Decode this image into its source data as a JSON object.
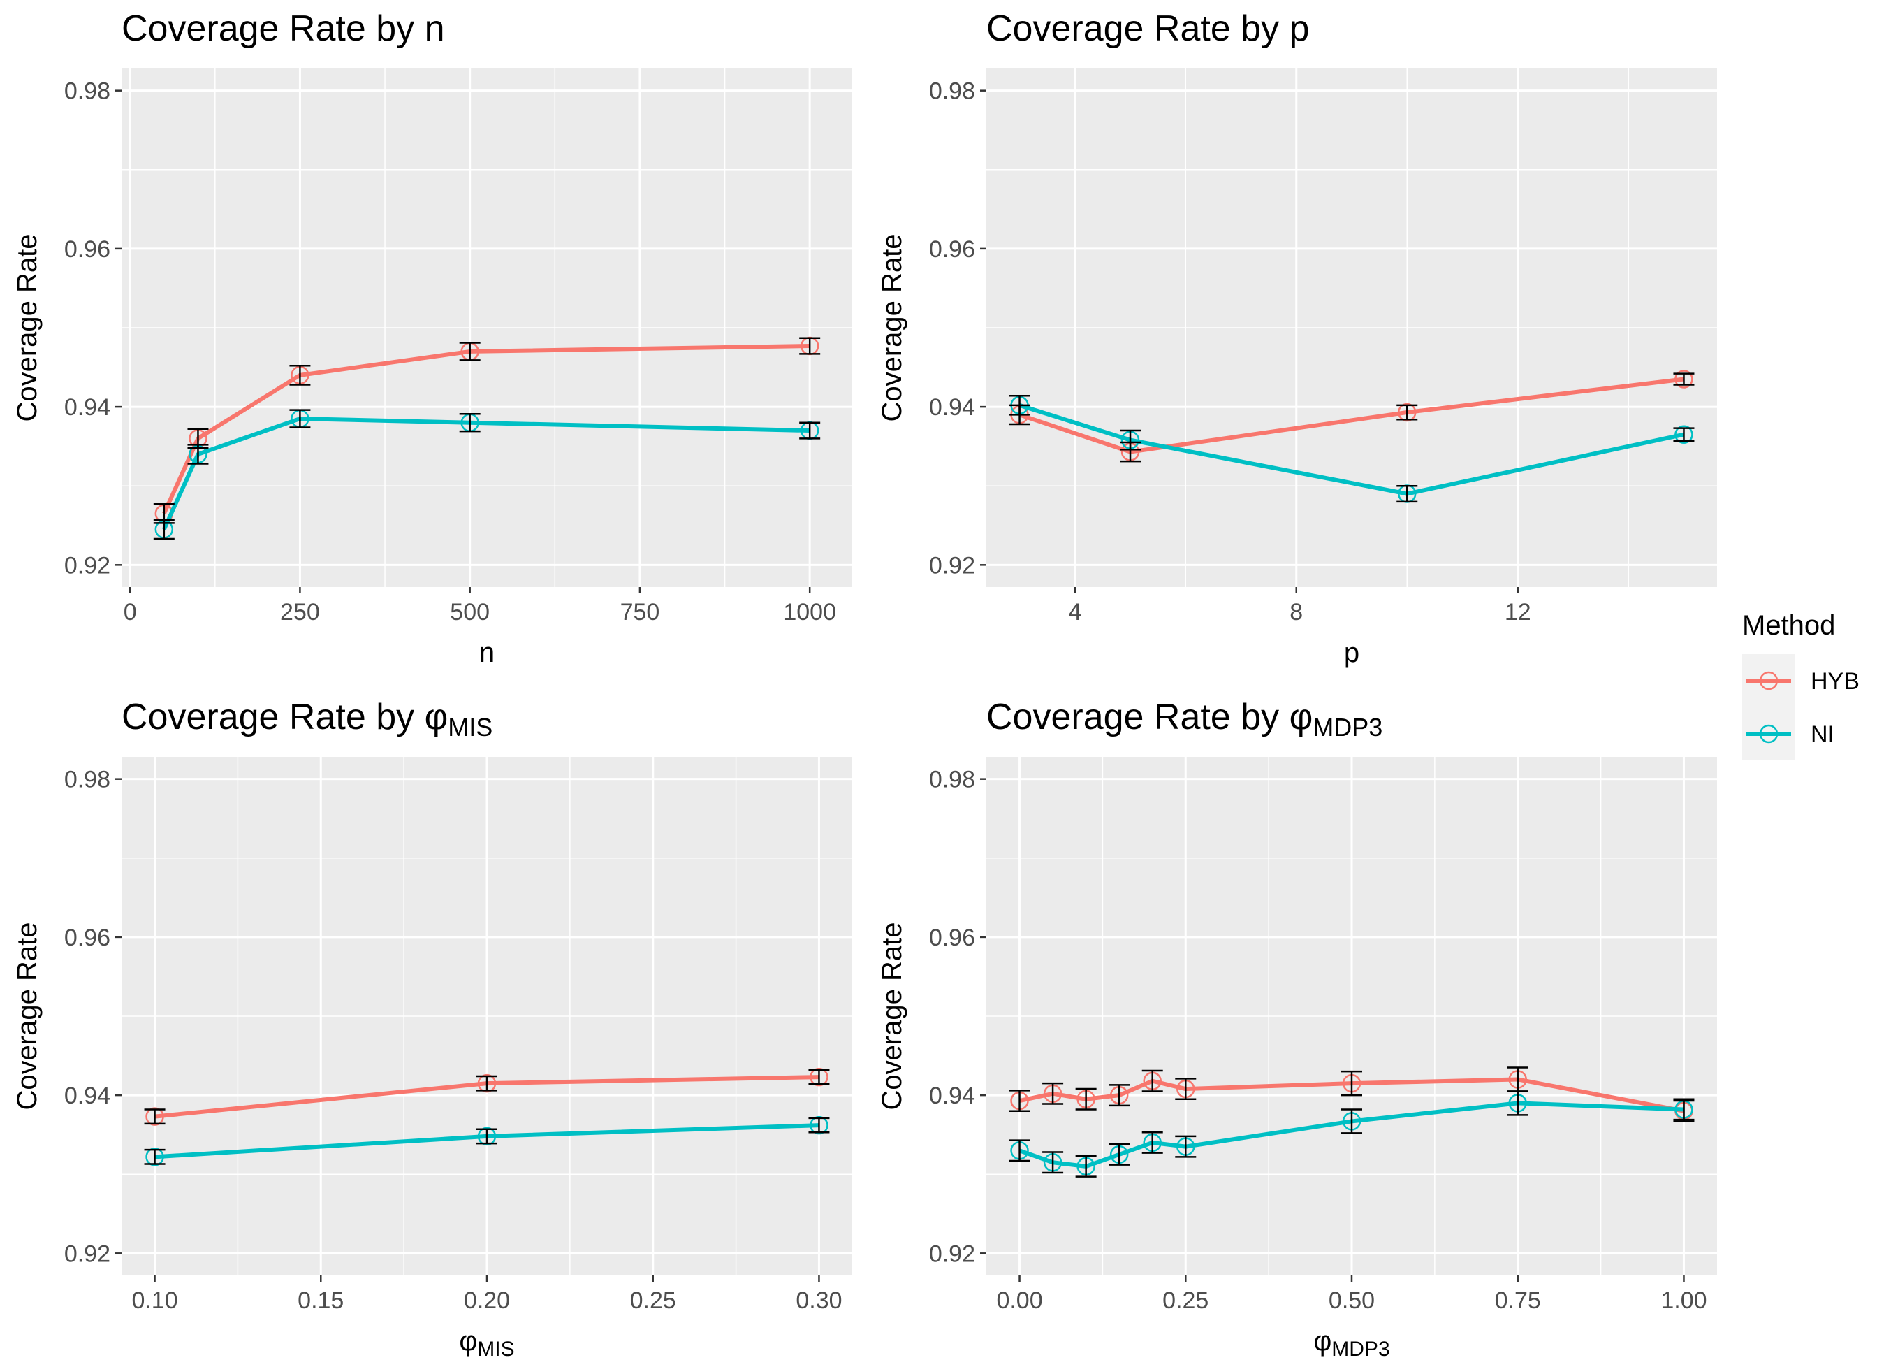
{
  "chart_data": [
    {
      "type": "line",
      "title": "Coverage Rate by n",
      "title_prefix": "Coverage Rate by ",
      "title_var": "n",
      "title_sub": "",
      "xlabel": "n",
      "xlabel_sub": "",
      "ylabel": "Coverage Rate",
      "xlim": [
        -12.5,
        1062.5
      ],
      "ylim": [
        0.9172,
        0.9828
      ],
      "xticks": [
        0,
        250,
        500,
        750,
        1000
      ],
      "xtick_labels": [
        "0",
        "250",
        "500",
        "750",
        "1000"
      ],
      "yticks": [
        0.92,
        0.94,
        0.96,
        0.98
      ],
      "ytick_labels": [
        "0.92",
        "0.94",
        "0.96",
        "0.98"
      ],
      "series": [
        {
          "name": "HYB",
          "x": [
            50,
            100,
            250,
            500,
            1000
          ],
          "y": [
            0.9265,
            0.936,
            0.944,
            0.947,
            0.9477
          ],
          "lower": [
            0.9253,
            0.9348,
            0.9428,
            0.9459,
            0.9467
          ],
          "upper": [
            0.9277,
            0.9372,
            0.9452,
            0.9481,
            0.9487
          ]
        },
        {
          "name": "NI",
          "x": [
            50,
            100,
            250,
            500,
            1000
          ],
          "y": [
            0.9245,
            0.934,
            0.9385,
            0.938,
            0.937
          ],
          "lower": [
            0.9233,
            0.9328,
            0.9374,
            0.9369,
            0.936
          ],
          "upper": [
            0.9257,
            0.9352,
            0.9396,
            0.9391,
            0.938
          ]
        }
      ]
    },
    {
      "type": "line",
      "title": "Coverage Rate by p",
      "title_prefix": "Coverage Rate by ",
      "title_var": "p",
      "title_sub": "",
      "xlabel": "p",
      "xlabel_sub": "",
      "ylabel": "Coverage Rate",
      "xlim": [
        2.4,
        15.6
      ],
      "ylim": [
        0.9172,
        0.9828
      ],
      "xticks": [
        4,
        8,
        12
      ],
      "xtick_labels": [
        "4",
        "8",
        "12"
      ],
      "yticks": [
        0.92,
        0.94,
        0.96,
        0.98
      ],
      "ytick_labels": [
        "0.92",
        "0.94",
        "0.96",
        "0.98"
      ],
      "series": [
        {
          "name": "HYB",
          "x": [
            3,
            5,
            10,
            15
          ],
          "y": [
            0.939,
            0.9343,
            0.9393,
            0.9435
          ],
          "lower": [
            0.9378,
            0.9331,
            0.9384,
            0.9428
          ],
          "upper": [
            0.9402,
            0.9355,
            0.9402,
            0.9442
          ]
        },
        {
          "name": "NI",
          "x": [
            3,
            5,
            10,
            15
          ],
          "y": [
            0.9402,
            0.9358,
            0.929,
            0.9365
          ],
          "lower": [
            0.939,
            0.9346,
            0.928,
            0.9357
          ],
          "upper": [
            0.9414,
            0.937,
            0.93,
            0.9373
          ]
        }
      ]
    },
    {
      "type": "line",
      "title": "Coverage Rate by φMIS",
      "title_prefix": "Coverage Rate by ",
      "title_var": "φ",
      "title_sub": "MIS",
      "xlabel": "φ",
      "xlabel_sub": "MIS",
      "ylabel": "Coverage Rate",
      "xlim": [
        0.09,
        0.31
      ],
      "ylim": [
        0.9172,
        0.9828
      ],
      "xticks": [
        0.1,
        0.15,
        0.2,
        0.25,
        0.3
      ],
      "xtick_labels": [
        "0.10",
        "0.15",
        "0.20",
        "0.25",
        "0.30"
      ],
      "yticks": [
        0.92,
        0.94,
        0.96,
        0.98
      ],
      "ytick_labels": [
        "0.92",
        "0.94",
        "0.96",
        "0.98"
      ],
      "series": [
        {
          "name": "HYB",
          "x": [
            0.1,
            0.2,
            0.3
          ],
          "y": [
            0.9373,
            0.9415,
            0.9423
          ],
          "lower": [
            0.9364,
            0.9406,
            0.9414
          ],
          "upper": [
            0.9382,
            0.9424,
            0.9432
          ]
        },
        {
          "name": "NI",
          "x": [
            0.1,
            0.2,
            0.3
          ],
          "y": [
            0.9322,
            0.9348,
            0.9362
          ],
          "lower": [
            0.9313,
            0.9339,
            0.9353
          ],
          "upper": [
            0.9331,
            0.9357,
            0.9371
          ]
        }
      ]
    },
    {
      "type": "line",
      "title": "Coverage Rate by φMDP3",
      "title_prefix": "Coverage Rate by ",
      "title_var": "φ",
      "title_sub": "MDP3",
      "xlabel": "φ",
      "xlabel_sub": "MDP3",
      "ylabel": "Coverage Rate",
      "xlim": [
        -0.05,
        1.05
      ],
      "ylim": [
        0.9172,
        0.9828
      ],
      "xticks": [
        0.0,
        0.25,
        0.5,
        0.75,
        1.0
      ],
      "xtick_labels": [
        "0.00",
        "0.25",
        "0.50",
        "0.75",
        "1.00"
      ],
      "yticks": [
        0.92,
        0.94,
        0.96,
        0.98
      ],
      "ytick_labels": [
        "0.92",
        "0.94",
        "0.96",
        "0.98"
      ],
      "series": [
        {
          "name": "HYB",
          "x": [
            0.0,
            0.05,
            0.1,
            0.15,
            0.2,
            0.25,
            0.5,
            0.75,
            1.0
          ],
          "y": [
            0.9393,
            0.9402,
            0.9395,
            0.94,
            0.9418,
            0.9408,
            0.9415,
            0.942,
            0.938
          ],
          "lower": [
            0.938,
            0.9389,
            0.9382,
            0.9387,
            0.9405,
            0.9395,
            0.94,
            0.9405,
            0.9367
          ],
          "upper": [
            0.9406,
            0.9415,
            0.9408,
            0.9413,
            0.9431,
            0.9421,
            0.943,
            0.9435,
            0.9393
          ]
        },
        {
          "name": "NI",
          "x": [
            0.0,
            0.05,
            0.1,
            0.15,
            0.2,
            0.25,
            0.5,
            0.75,
            1.0
          ],
          "y": [
            0.933,
            0.9315,
            0.931,
            0.9325,
            0.934,
            0.9335,
            0.9367,
            0.939,
            0.9382
          ],
          "lower": [
            0.9317,
            0.9302,
            0.9297,
            0.9312,
            0.9327,
            0.9322,
            0.9352,
            0.9375,
            0.9369
          ],
          "upper": [
            0.9343,
            0.9328,
            0.9323,
            0.9338,
            0.9353,
            0.9348,
            0.9382,
            0.9405,
            0.9395
          ]
        }
      ]
    }
  ],
  "legend": {
    "title": "Method",
    "items": [
      {
        "label": "HYB",
        "color": "#F8766D"
      },
      {
        "label": "NI",
        "color": "#00BFC4"
      }
    ]
  },
  "colors": {
    "panel_background": "#EBEBEB",
    "grid_major": "#FFFFFF",
    "errorbar": "#000000",
    "tick_label": "#4D4D4D"
  }
}
